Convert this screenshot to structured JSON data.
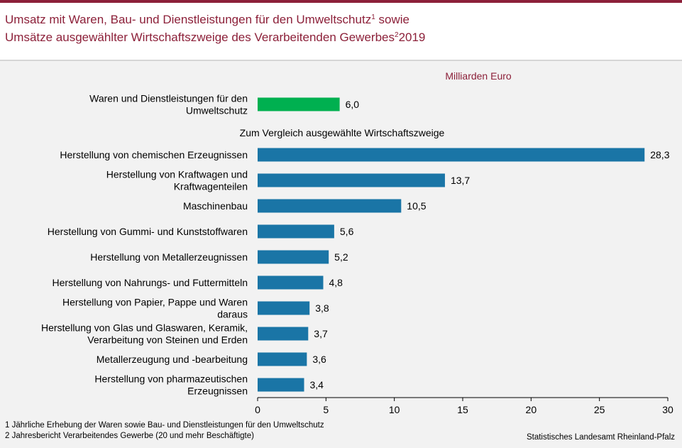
{
  "title": {
    "line1": "Umsatz mit Waren, Bau- und Dienstleistungen für den Umweltschutz",
    "line1_sup": "1",
    "line1_tail": " sowie",
    "line2": "Umsätze ausgewählter Wirtschaftszweige des Verarbeitenden Gewerbes",
    "line2_sup": "2",
    "line2_tail": "2019"
  },
  "chart_data": {
    "type": "bar",
    "orientation": "horizontal",
    "unit_label": "Milliarden Euro",
    "section_label": "Zum Vergleich ausgewählte Wirtschaftszweige",
    "xlim": [
      0,
      30
    ],
    "xticks": [
      "0",
      "5",
      "10",
      "15",
      "20",
      "25",
      "30"
    ],
    "grid": false,
    "colors": {
      "highlight": "#00b050",
      "main": "#1a75a6"
    },
    "highlight": {
      "label_lines": [
        "Waren und Dienstleistungen für den",
        "Umweltschutz"
      ],
      "value": 6.0,
      "value_label": "6,0"
    },
    "categories": [
      {
        "label_lines": [
          "Herstellung von chemischen Erzeugnissen"
        ],
        "value": 28.3,
        "value_label": "28,3"
      },
      {
        "label_lines": [
          "Herstellung von Kraftwagen und",
          "Kraftwagenteilen"
        ],
        "value": 13.7,
        "value_label": "13,7"
      },
      {
        "label_lines": [
          "Maschinenbau"
        ],
        "value": 10.5,
        "value_label": "10,5"
      },
      {
        "label_lines": [
          "Herstellung von Gummi- und Kunststoffwaren"
        ],
        "value": 5.6,
        "value_label": "5,6"
      },
      {
        "label_lines": [
          "Herstellung von Metallerzeugnissen"
        ],
        "value": 5.2,
        "value_label": "5,2"
      },
      {
        "label_lines": [
          "Herstellung von Nahrungs- und Futtermitteln"
        ],
        "value": 4.8,
        "value_label": "4,8"
      },
      {
        "label_lines": [
          "Herstellung von Papier, Pappe und Waren",
          "daraus"
        ],
        "value": 3.8,
        "value_label": "3,8"
      },
      {
        "label_lines": [
          "Herstellung von Glas und Glaswaren, Keramik,",
          "Verarbeitung von Steinen und Erden"
        ],
        "value": 3.7,
        "value_label": "3,7"
      },
      {
        "label_lines": [
          "Metallerzeugung und -bearbeitung"
        ],
        "value": 3.6,
        "value_label": "3,6"
      },
      {
        "label_lines": [
          "Herstellung von pharmazeutischen",
          "Erzeugnissen"
        ],
        "value": 3.4,
        "value_label": "3,4"
      }
    ]
  },
  "footnotes": {
    "note1": "1 Jährliche Erhebung der Waren sowie Bau- und Dienstleistungen für den Umweltschutz",
    "note2": "2 Jahresbericht Verarbeitendes Gewerbe (20 und mehr Beschäftigte)"
  },
  "source": "Statistisches Landesamt Rheinland-Pfalz"
}
